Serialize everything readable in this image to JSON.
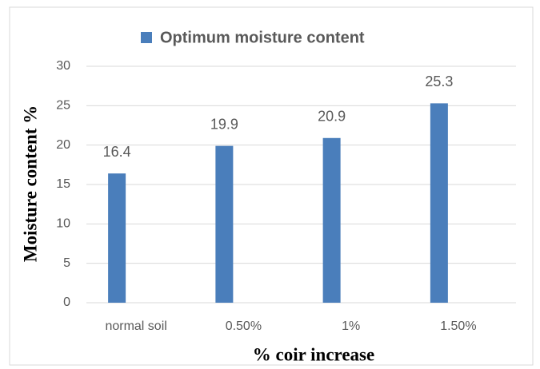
{
  "chart_data": {
    "type": "bar",
    "x_label": "% coir increase",
    "y_label": "Moisture content  %",
    "categories": [
      "normal soil",
      "0.50%",
      "1%",
      "1.50%"
    ],
    "series": [
      {
        "name": "Optimum moisture content",
        "color": "#4a7ebb",
        "values": [
          16.4,
          19.9,
          20.9,
          25.3
        ]
      }
    ],
    "ylim": [
      0,
      30
    ],
    "yticks": [
      0,
      5,
      10,
      15,
      20,
      25,
      30
    ],
    "grid": true,
    "legend": "top"
  }
}
